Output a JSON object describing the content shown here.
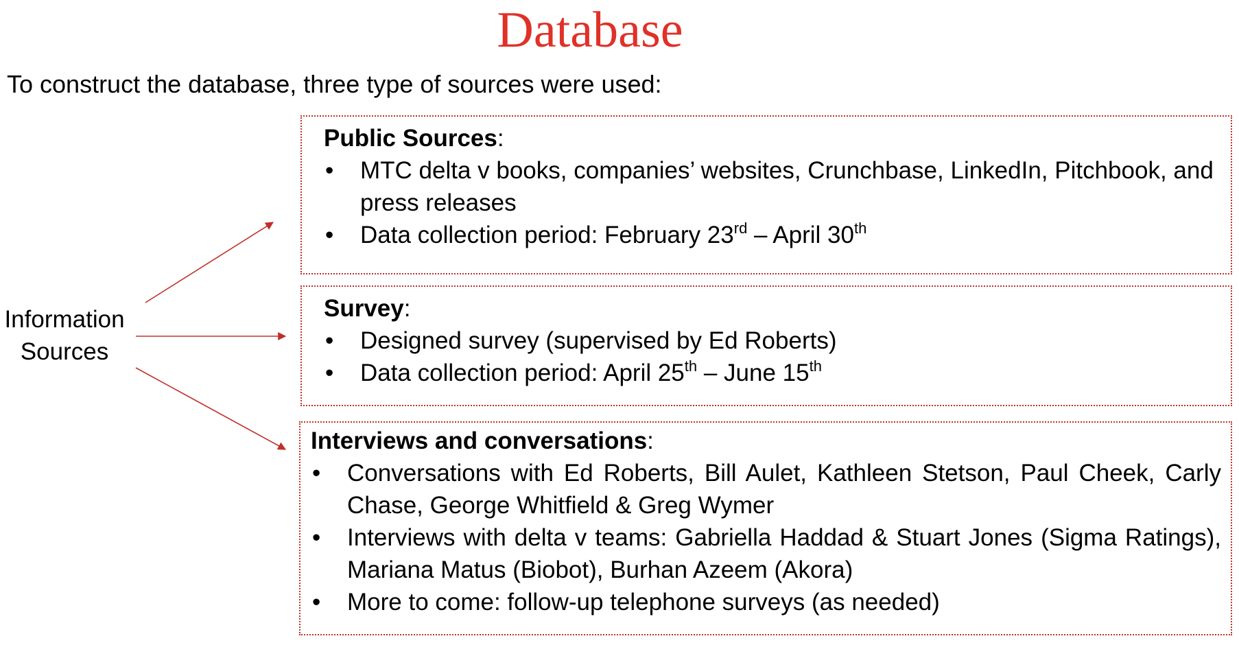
{
  "title": "Database",
  "intro": "To construct the database, three type of sources were used:",
  "center_label": {
    "line1": "Information",
    "line2": "Sources"
  },
  "boxes": [
    {
      "heading": "Public Sources",
      "bullets": [
        {
          "text": "MTC delta v books, companies’ websites, Crunchbase, LinkedIn, Pitchbook, and press releases"
        },
        {
          "prefix": "Data collection period: February 23",
          "sup1": "rd",
          "mid": " – April 30",
          "sup2": "th"
        }
      ]
    },
    {
      "heading": "Survey",
      "bullets": [
        {
          "text": "Designed survey (supervised by Ed Roberts)"
        },
        {
          "prefix": "Data collection period: April 25",
          "sup1": "th",
          "mid": " – June 15",
          "sup2": "th"
        }
      ]
    },
    {
      "heading": "Interviews and conversations",
      "bullets": [
        {
          "text": "Conversations with Ed Roberts, Bill Aulet, Kathleen Stetson, Paul Cheek, Carly Chase, George Whitfield & Greg Wymer"
        },
        {
          "text": "Interviews with delta v teams: Gabriella Haddad  & Stuart Jones (Sigma Ratings), Mariana Matus (Biobot),  Burhan Azeem (Akora)"
        },
        {
          "text": "More to come: follow-up telephone surveys (as needed)"
        }
      ]
    }
  ],
  "bullet_char": "•",
  "colon": ":",
  "colors": {
    "title": "#e03128",
    "arrow": "#c0302a",
    "box_border": "#c0302a"
  }
}
